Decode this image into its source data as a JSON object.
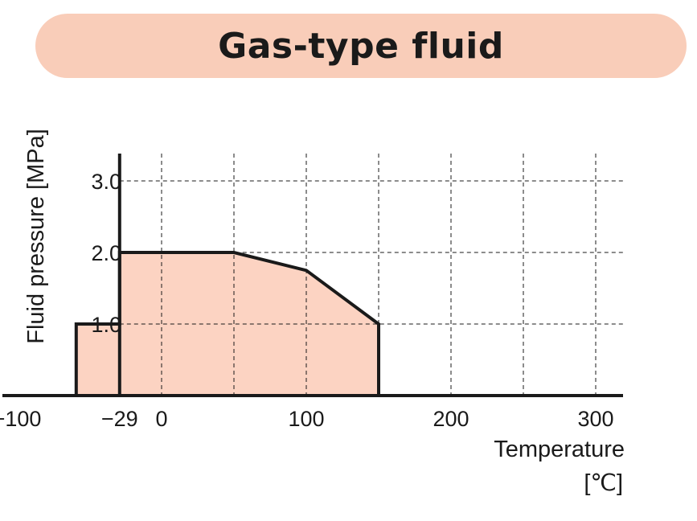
{
  "header": {
    "title": "Gas-type fluid"
  },
  "colors": {
    "banner": "#f9cdb9",
    "fill": "#fcd3c2",
    "line": "#1a1a1a",
    "grid": "#1a1a1a"
  },
  "chart_data": {
    "type": "area",
    "title": "Gas-type fluid",
    "xlabel": "Temperature",
    "xunit": "[℃]",
    "ylabel": "Fluid pressure [MPa]",
    "xlim": [
      -100,
      330
    ],
    "ylim": [
      0,
      3.35
    ],
    "grid": true,
    "x_ticks": [
      -100,
      -29,
      0,
      100,
      200,
      300
    ],
    "x_tick_labels": [
      "−100",
      "−29",
      "0",
      "100",
      "200",
      "300"
    ],
    "x_gridlines": [
      -29,
      0,
      50,
      100,
      150,
      200,
      250,
      300
    ],
    "y_ticks": [
      1.0,
      2.0,
      3.0
    ],
    "y_tick_labels": [
      "1.0",
      "2.0",
      "3.0"
    ],
    "x_axis_start": -110,
    "y_axis_at": -29,
    "series": [
      {
        "x": [
          -59,
          -59,
          -29,
          -29,
          50,
          100,
          150,
          150
        ],
        "y": [
          0,
          1.0,
          1.0,
          2.0,
          2.0,
          1.75,
          1.0,
          0
        ]
      }
    ]
  }
}
